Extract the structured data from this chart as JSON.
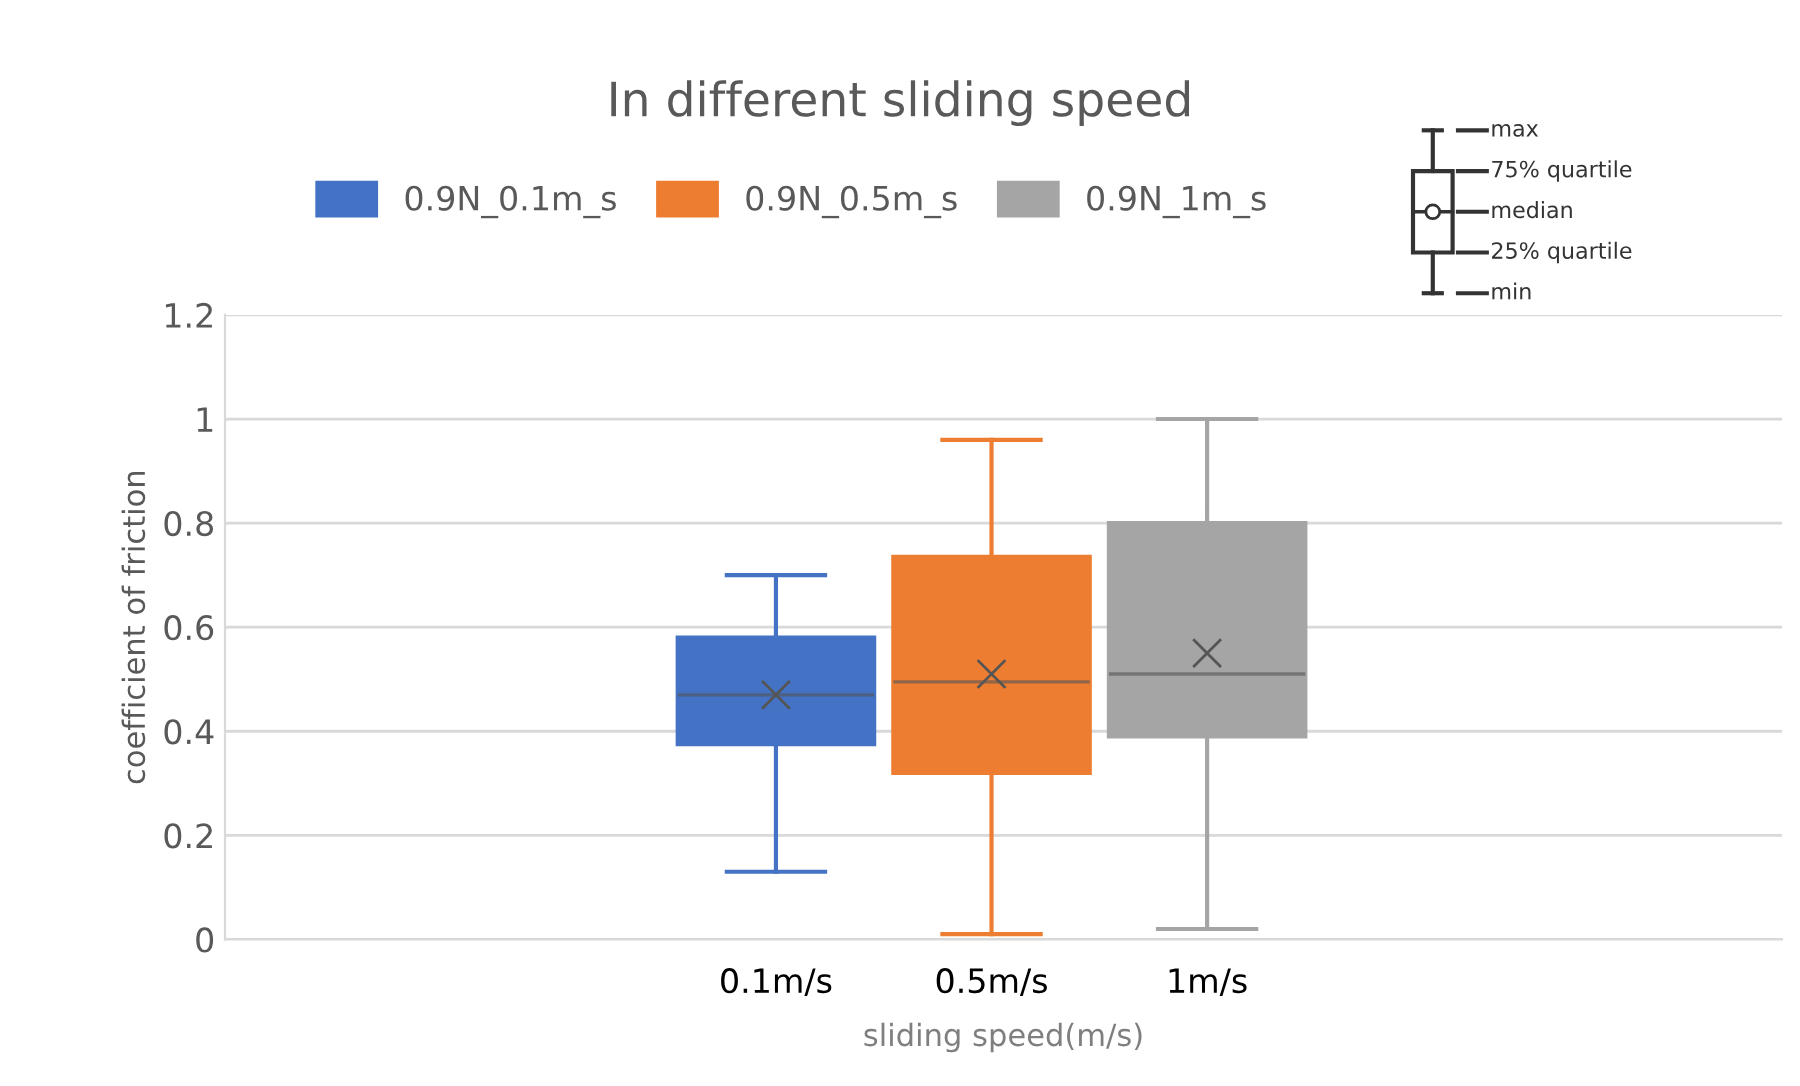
{
  "chart_data": {
    "type": "box",
    "title": "In different sliding speed",
    "xlabel": "sliding speed(m/s)",
    "ylabel": "coefficient of friction",
    "categories": [
      null
    ],
    "series": [
      {
        "name": "0.9N_0.1m_s",
        "color": "#4472c4",
        "boxes": [
          {
            "low": 0.13,
            "q1": 0.375,
            "median": 0.47,
            "q3": 0.58,
            "high": 0.7,
            "mean": 0.47
          }
        ]
      },
      {
        "name": "0.9N_0.5m_s",
        "color": "#ed7d31",
        "boxes": [
          {
            "low": 0.01,
            "q1": 0.32,
            "median": 0.495,
            "q3": 0.735,
            "high": 0.96,
            "mean": 0.51
          }
        ]
      },
      {
        "name": "0.9N_1m_s",
        "color": "#a5a5a5",
        "boxes": [
          {
            "low": 0.02,
            "q1": 0.39,
            "median": 0.51,
            "q3": 0.8,
            "high": 1.0,
            "mean": 0.55
          }
        ]
      }
    ],
    "annotations": [
      "0.1m/s",
      "0.5m/s",
      "1m/s",
      "max",
      "75% quartile",
      "median",
      "25% quartile",
      "min"
    ],
    "ylim": [
      0,
      1.2
    ],
    "yticks": [
      0,
      0.2,
      0.4,
      0.6,
      0.8,
      1,
      1.2
    ],
    "grid": "y",
    "legend": "top"
  }
}
